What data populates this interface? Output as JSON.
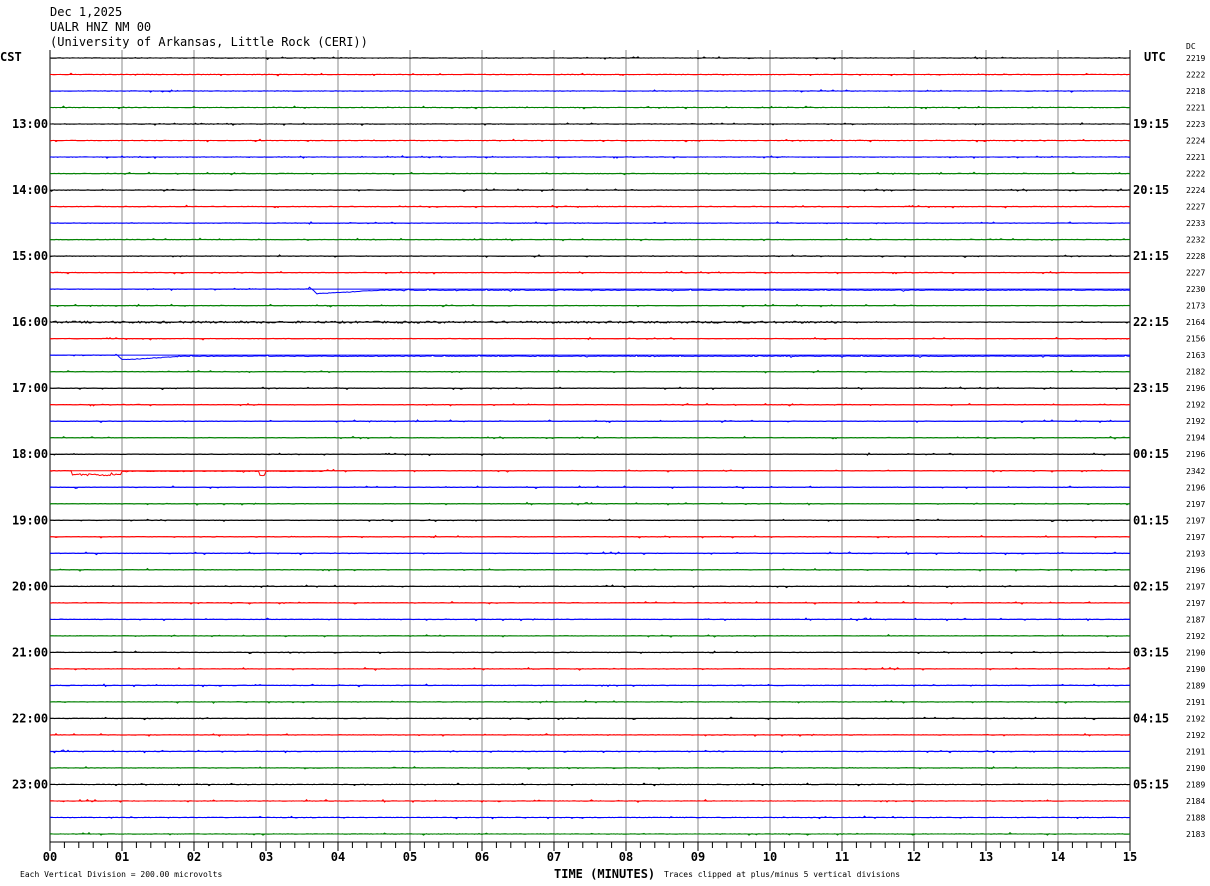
{
  "header": {
    "date": "Dec 1,2025",
    "station": "UALR HNZ NM 00",
    "institution": "(University of Arkansas, Little Rock (CERI))"
  },
  "chart_data": {
    "type": "line",
    "subtype": "helicorder",
    "left_axis_title": "CST",
    "right_axis_title": "UTC",
    "dc_title": "DC",
    "xlabel": "TIME (MINUTES)",
    "xlim": [
      0,
      15
    ],
    "x_ticks": [
      "00",
      "01",
      "02",
      "03",
      "04",
      "05",
      "06",
      "07",
      "08",
      "09",
      "10",
      "11",
      "12",
      "13",
      "14",
      "15"
    ],
    "trace_colors": [
      "#000000",
      "#ff0000",
      "#0000ff",
      "#008000"
    ],
    "rows_per_hour": 4,
    "left_labels": [
      "13:00",
      "14:00",
      "15:00",
      "16:00",
      "17:00",
      "18:00",
      "19:00",
      "20:00",
      "21:00",
      "22:00",
      "23:00"
    ],
    "right_labels": [
      "19:15",
      "20:15",
      "21:15",
      "22:15",
      "23:15",
      "00:15",
      "01:15",
      "02:15",
      "03:15",
      "04:15",
      "05:15"
    ],
    "dc_values": [
      "2219",
      "2222",
      "2218",
      "2221",
      "2223",
      "2224",
      "2221",
      "2222",
      "2224",
      "2227",
      "2233",
      "2232",
      "2228",
      "2227",
      "2230",
      "2173",
      "2164",
      "2156",
      "2163",
      "2182",
      "2196",
      "2192",
      "2192",
      "2194",
      "2196",
      "2342",
      "2196",
      "2197",
      "2197",
      "2197",
      "2193",
      "2196",
      "2197",
      "2197",
      "2187",
      "2192",
      "2190",
      "2190",
      "2189",
      "2191",
      "2192",
      "2192",
      "2191",
      "2190",
      "2189",
      "2184",
      "2188",
      "2183"
    ],
    "notable_events": [
      {
        "row": 14,
        "minute": 3.6,
        "kind": "transient offset"
      },
      {
        "row": 16,
        "minute": 0.0,
        "kind": "elevated noise"
      },
      {
        "row": 18,
        "minute": 0.9,
        "kind": "transient offset"
      },
      {
        "row": 25,
        "minute": 0.3,
        "kind": "step offset"
      }
    ]
  },
  "footer": {
    "scale": "Each Vertical Division =  200.00 microvolts",
    "clip_note": "Traces clipped at plus/minus 5 vertical divisions"
  }
}
